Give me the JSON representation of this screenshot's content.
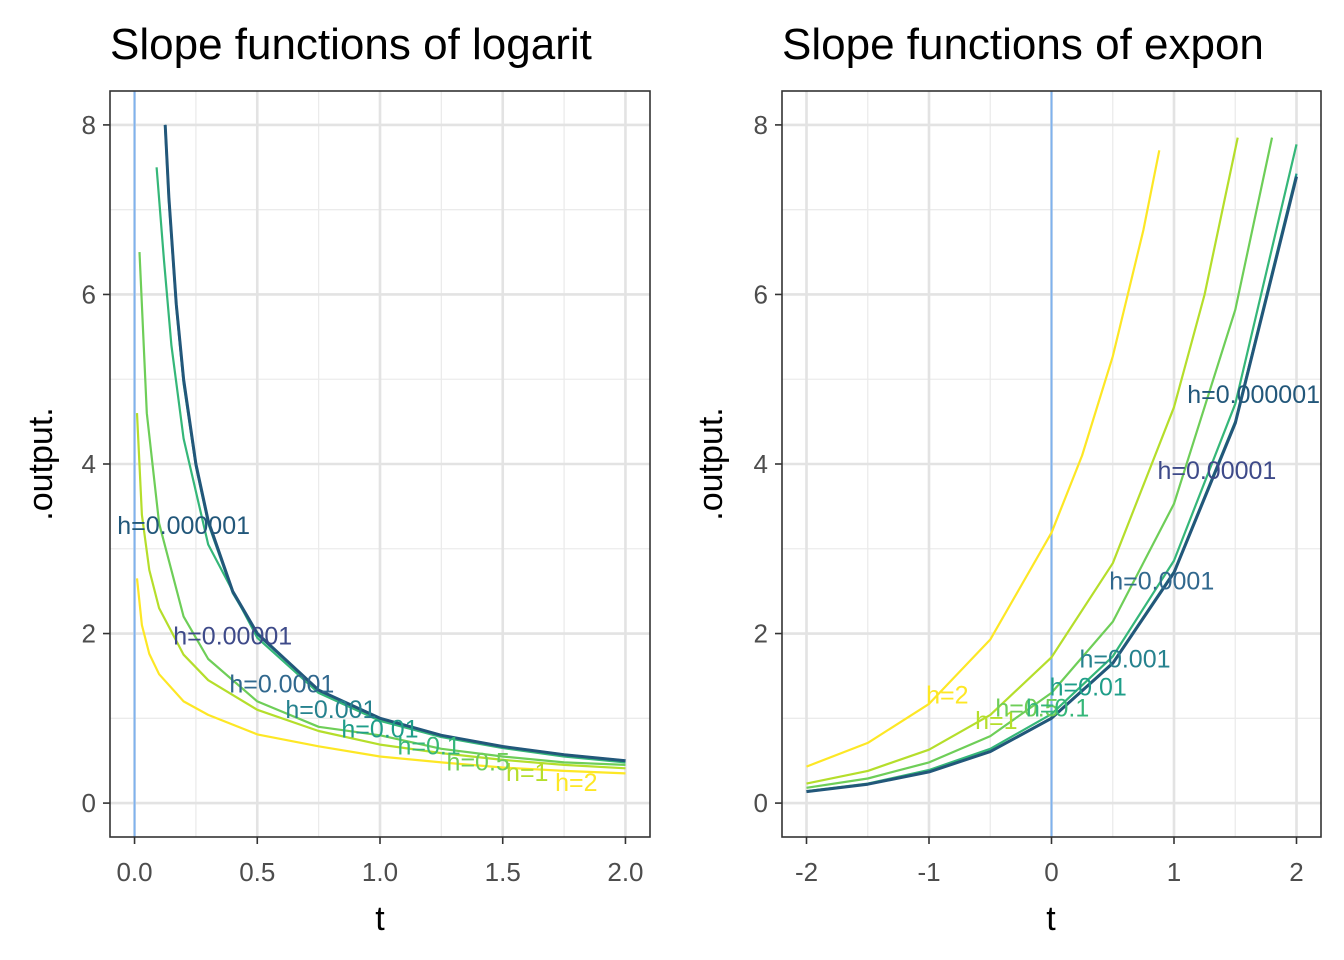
{
  "chart_data": [
    {
      "type": "line",
      "title": "Slope functions of logarit",
      "xlabel": "t",
      "ylabel": ".output.",
      "xlim": [
        -0.1,
        2.1
      ],
      "ylim": [
        -0.4,
        8.4
      ],
      "xticks": [
        0.0,
        0.5,
        1.0,
        1.5,
        2.0
      ],
      "xtick_labels": [
        "0.0",
        "0.5",
        "1.0",
        "1.5",
        "2.0"
      ],
      "yticks": [
        0,
        2,
        4,
        6,
        8
      ],
      "ytick_labels": [
        "0",
        "2",
        "4",
        "6",
        "8"
      ],
      "grid": true,
      "vline": {
        "x": 0,
        "color": "#7fb2ee"
      },
      "series": [
        {
          "name": "h=2",
          "color": "#fde725",
          "x": [
            0.01,
            0.03,
            0.06,
            0.1,
            0.2,
            0.3,
            0.5,
            0.75,
            1.0,
            1.25,
            1.5,
            1.75,
            2.0
          ],
          "y": [
            2.65,
            2.1,
            1.76,
            1.52,
            1.2,
            1.04,
            0.81,
            0.67,
            0.55,
            0.48,
            0.42,
            0.38,
            0.35
          ],
          "label": {
            "text": "h=2",
            "x": 1.8,
            "y": 0.22
          }
        },
        {
          "name": "h=1",
          "color": "#b5de2b",
          "x": [
            0.01,
            0.03,
            0.06,
            0.1,
            0.2,
            0.3,
            0.5,
            0.75,
            1.0,
            1.25,
            1.5,
            1.75,
            2.0
          ],
          "y": [
            4.6,
            3.4,
            2.75,
            2.3,
            1.75,
            1.45,
            1.1,
            0.85,
            0.69,
            0.59,
            0.51,
            0.45,
            0.41
          ],
          "label": {
            "text": "h=1",
            "x": 1.6,
            "y": 0.34
          }
        },
        {
          "name": "h=0.5",
          "color": "#6ece58",
          "x": [
            0.02,
            0.05,
            0.1,
            0.2,
            0.3,
            0.5,
            0.75,
            1.0,
            1.25,
            1.5,
            1.75,
            2.0
          ],
          "y": [
            6.5,
            4.6,
            3.3,
            2.2,
            1.7,
            1.2,
            0.9,
            0.8,
            0.64,
            0.55,
            0.48,
            0.45
          ],
          "label": {
            "text": "h=0.5",
            "x": 1.4,
            "y": 0.46
          }
        },
        {
          "name": "h=0.1",
          "color": "#35b779",
          "x": [
            0.09,
            0.12,
            0.15,
            0.2,
            0.3,
            0.5,
            0.75,
            1.0,
            1.25,
            1.5,
            1.75,
            2.0
          ],
          "y": [
            7.5,
            6.4,
            5.4,
            4.3,
            3.05,
            1.95,
            1.3,
            0.97,
            0.78,
            0.65,
            0.55,
            0.48
          ],
          "label": {
            "text": "h=0.1",
            "x": 1.2,
            "y": 0.65
          }
        },
        {
          "name": "h=0.01",
          "color": "#1f9e89",
          "x": [
            0.124,
            0.14,
            0.17,
            0.2,
            0.25,
            0.3,
            0.4,
            0.5,
            0.75,
            1.0,
            1.25,
            1.5,
            1.75,
            2.0
          ],
          "y": [
            8.0,
            7.1,
            5.85,
            4.95,
            3.97,
            3.3,
            2.48,
            1.99,
            1.33,
            0.995,
            0.8,
            0.665,
            0.57,
            0.5
          ],
          "label": {
            "text": "h=0.01",
            "x": 1.0,
            "y": 0.85
          }
        },
        {
          "name": "h=0.001",
          "color": "#26828e",
          "x": [
            0.125,
            0.14,
            0.17,
            0.2,
            0.25,
            0.3,
            0.4,
            0.5,
            0.75,
            1.0,
            1.25,
            1.5,
            1.75,
            2.0
          ],
          "y": [
            8.0,
            7.14,
            5.88,
            5.0,
            4.0,
            3.33,
            2.5,
            2.0,
            1.333,
            1.0,
            0.8,
            0.667,
            0.571,
            0.5
          ],
          "label": {
            "text": "h=0.001",
            "x": 0.8,
            "y": 1.08
          }
        },
        {
          "name": "h=0.0001",
          "color": "#31688e",
          "x": [
            0.125,
            0.14,
            0.17,
            0.2,
            0.25,
            0.3,
            0.4,
            0.5,
            0.75,
            1.0,
            1.25,
            1.5,
            1.75,
            2.0
          ],
          "y": [
            8.0,
            7.14,
            5.88,
            5.0,
            4.0,
            3.33,
            2.5,
            2.0,
            1.333,
            1.0,
            0.8,
            0.667,
            0.571,
            0.5
          ],
          "label": {
            "text": "h=0.0001",
            "x": 0.6,
            "y": 1.38
          }
        },
        {
          "name": "h=0.00001",
          "color": "#3e4a89",
          "x": [
            0.125,
            0.14,
            0.17,
            0.2,
            0.25,
            0.3,
            0.4,
            0.5,
            0.75,
            1.0,
            1.25,
            1.5,
            1.75,
            2.0
          ],
          "y": [
            8.0,
            7.14,
            5.88,
            5.0,
            4.0,
            3.33,
            2.5,
            2.0,
            1.333,
            1.0,
            0.8,
            0.667,
            0.571,
            0.5
          ],
          "label": {
            "text": "h=0.00001",
            "x": 0.4,
            "y": 1.95
          }
        },
        {
          "name": "h=0.000001",
          "color": "#22577a",
          "x": [
            0.125,
            0.14,
            0.17,
            0.2,
            0.25,
            0.3,
            0.4,
            0.5,
            0.75,
            1.0,
            1.25,
            1.5,
            1.75,
            2.0
          ],
          "y": [
            8.0,
            7.14,
            5.88,
            5.0,
            4.0,
            3.33,
            2.5,
            2.0,
            1.333,
            1.0,
            0.8,
            0.667,
            0.571,
            0.5
          ],
          "label": {
            "text": "h=0.000001",
            "x": 0.2,
            "y": 3.25
          }
        }
      ]
    },
    {
      "type": "line",
      "title": "Slope functions of expon",
      "xlabel": "t",
      "ylabel": ".output.",
      "xlim": [
        -2.2,
        2.2
      ],
      "ylim": [
        -0.4,
        8.4
      ],
      "xticks": [
        -2,
        -1,
        0,
        1,
        2
      ],
      "xtick_labels": [
        "-2",
        "-1",
        "0",
        "1",
        "2"
      ],
      "yticks": [
        0,
        2,
        4,
        6,
        8
      ],
      "ytick_labels": [
        "0",
        "2",
        "4",
        "6",
        "8"
      ],
      "grid": true,
      "vline": {
        "x": 0,
        "color": "#7fb2ee"
      },
      "series": [
        {
          "name": "h=2",
          "color": "#fde725",
          "x": [
            -2.0,
            -1.5,
            -1.0,
            -0.5,
            0.0,
            0.25,
            0.5,
            0.75,
            0.88
          ],
          "y": [
            0.43,
            0.71,
            1.17,
            1.93,
            3.19,
            4.1,
            5.27,
            6.76,
            7.7
          ],
          "label": {
            "text": "h=2",
            "x": -0.85,
            "y": 1.25
          }
        },
        {
          "name": "h=1",
          "color": "#b5de2b",
          "x": [
            -2.0,
            -1.5,
            -1.0,
            -0.5,
            0.0,
            0.5,
            1.0,
            1.25,
            1.52
          ],
          "y": [
            0.23,
            0.38,
            0.63,
            1.04,
            1.72,
            2.83,
            4.67,
            6.0,
            7.85
          ],
          "label": {
            "text": "h=1",
            "x": -0.45,
            "y": 0.95
          }
        },
        {
          "name": "h=0.5",
          "color": "#6ece58",
          "x": [
            -2.0,
            -1.5,
            -1.0,
            -0.5,
            0.0,
            0.5,
            1.0,
            1.5,
            1.8
          ],
          "y": [
            0.18,
            0.29,
            0.48,
            0.79,
            1.3,
            2.14,
            3.53,
            5.82,
            7.85
          ],
          "label": {
            "text": "h=0.5",
            "x": -0.2,
            "y": 1.1
          }
        },
        {
          "name": "h=0.1",
          "color": "#35b779",
          "x": [
            -2.0,
            -1.5,
            -1.0,
            -0.5,
            0.0,
            0.5,
            1.0,
            1.5,
            2.0
          ],
          "y": [
            0.14,
            0.23,
            0.39,
            0.64,
            1.05,
            1.73,
            2.86,
            4.71,
            7.77
          ],
          "label": {
            "text": "h=0.1",
            "x": 0.05,
            "y": 1.1
          }
        },
        {
          "name": "h=0.01",
          "color": "#1f9e89",
          "x": [
            -2.0,
            -1.5,
            -1.0,
            -0.5,
            0.0,
            0.5,
            1.0,
            1.5,
            2.0
          ],
          "y": [
            0.136,
            0.224,
            0.37,
            0.61,
            1.005,
            1.657,
            2.732,
            4.504,
            7.426
          ],
          "label": {
            "text": "h=0.01",
            "x": 0.3,
            "y": 1.35
          }
        },
        {
          "name": "h=0.001",
          "color": "#26828e",
          "x": [
            -2.0,
            -1.5,
            -1.0,
            -0.5,
            0.0,
            0.5,
            1.0,
            1.5,
            2.0
          ],
          "y": [
            0.135,
            0.223,
            0.368,
            0.607,
            1.0,
            1.649,
            2.718,
            4.482,
            7.389
          ],
          "label": {
            "text": "h=0.001",
            "x": 0.6,
            "y": 1.68
          }
        },
        {
          "name": "h=0.0001",
          "color": "#31688e",
          "x": [
            -2.0,
            -1.5,
            -1.0,
            -0.5,
            0.0,
            0.5,
            1.0,
            1.5,
            2.0
          ],
          "y": [
            0.135,
            0.223,
            0.368,
            0.607,
            1.0,
            1.649,
            2.718,
            4.482,
            7.389
          ],
          "label": {
            "text": "h=0.0001",
            "x": 0.9,
            "y": 2.6
          }
        },
        {
          "name": "h=0.00001",
          "color": "#3e4a89",
          "x": [
            -2.0,
            -1.5,
            -1.0,
            -0.5,
            0.0,
            0.5,
            1.0,
            1.5,
            2.0
          ],
          "y": [
            0.135,
            0.223,
            0.368,
            0.607,
            1.0,
            1.649,
            2.718,
            4.482,
            7.389
          ],
          "label": {
            "text": "h=0.00001",
            "x": 1.35,
            "y": 3.9
          }
        },
        {
          "name": "h=0.000001",
          "color": "#22577a",
          "x": [
            -2.0,
            -1.5,
            -1.0,
            -0.5,
            0.0,
            0.5,
            1.0,
            1.5,
            2.0
          ],
          "y": [
            0.135,
            0.223,
            0.368,
            0.607,
            1.0,
            1.649,
            2.718,
            4.482,
            7.389
          ],
          "label": {
            "text": "h=0.000001",
            "x": 1.65,
            "y": 4.8
          }
        }
      ]
    }
  ]
}
